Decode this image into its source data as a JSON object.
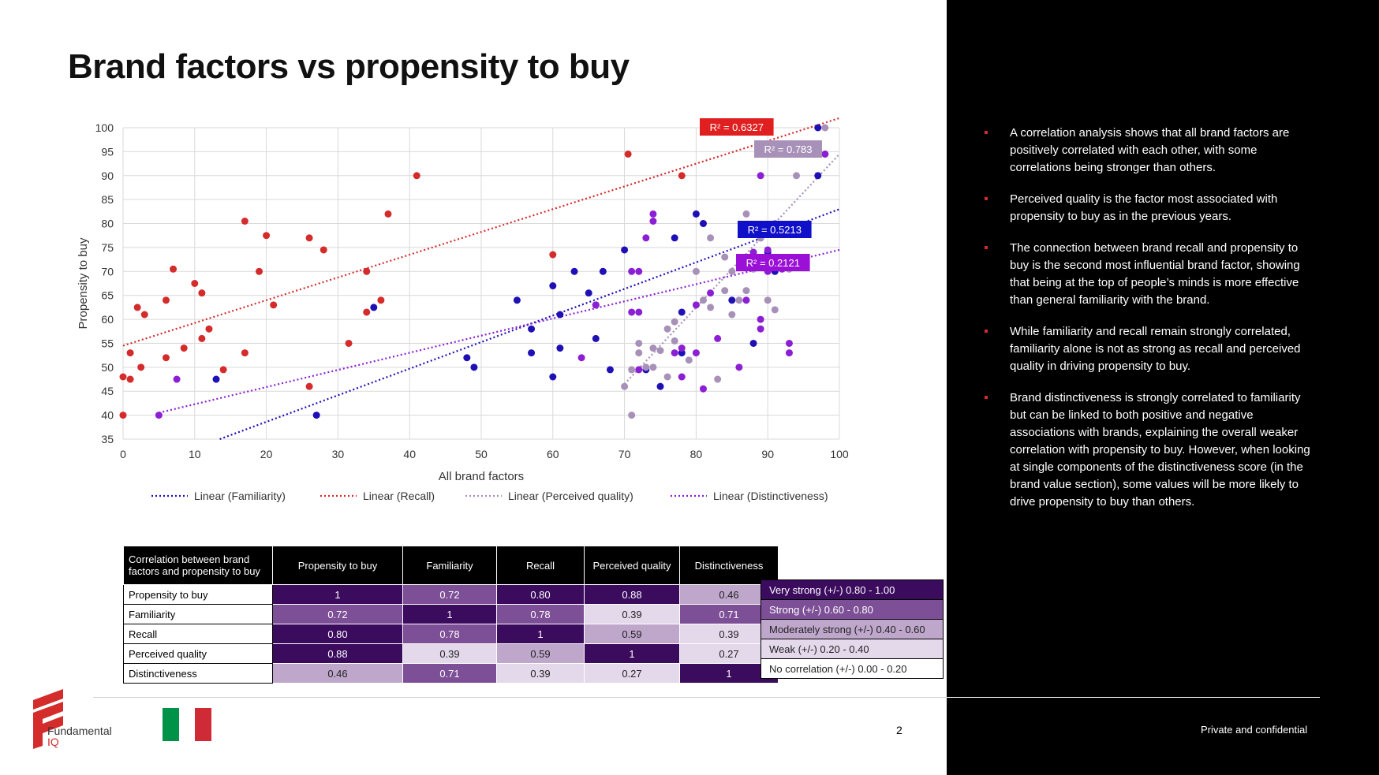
{
  "slide": {
    "title": "Brand factors vs propensity to buy",
    "page_number": "2",
    "confidential": "Private and confidential",
    "logo": {
      "line1": "Fundamental",
      "line2": "IQ"
    },
    "flag_colors": [
      "#009246",
      "#ffffff",
      "#ce2b37"
    ]
  },
  "bullets": [
    "A correlation analysis shows that all brand factors are positively correlated with each other, with some correlations being stronger than others.",
    "Perceived quality is the factor most associated with propensity to buy as in the previous years.",
    "The connection between brand recall and propensity to buy is the second most influential brand factor, showing that being at the top of people’s minds is more effective than general familiarity with the brand.",
    "While familiarity and recall remain strongly correlated, familiarity alone is not as strong as recall and perceived quality in driving propensity to buy.",
    "Brand distinctiveness is strongly correlated to familiarity but can be linked to both positive and negative associations with brands, explaining the overall weaker correlation with propensity to buy. However, when looking at single components of the distinctiveness score (in the brand value section), some values will be more likely to drive propensity to buy than others."
  ],
  "chart_data": {
    "type": "scatter",
    "xlabel": "All brand factors",
    "ylabel": "Propensity to buy",
    "xlim": [
      0,
      100
    ],
    "ylim": [
      35,
      100
    ],
    "xticks": [
      0,
      10,
      20,
      30,
      40,
      50,
      60,
      70,
      80,
      90,
      100
    ],
    "yticks": [
      35,
      40,
      45,
      50,
      55,
      60,
      65,
      70,
      75,
      80,
      85,
      90,
      95,
      100
    ],
    "grid": true,
    "legend_position": "bottom",
    "series": [
      {
        "name": "Familiarity",
        "color": "#1f10b5",
        "points": [
          [
            13,
            47.5
          ],
          [
            27,
            40
          ],
          [
            35,
            62.5
          ],
          [
            48,
            52
          ],
          [
            49,
            50
          ],
          [
            55,
            64
          ],
          [
            57,
            58
          ],
          [
            57,
            53
          ],
          [
            60,
            67
          ],
          [
            60,
            48
          ],
          [
            61,
            54
          ],
          [
            61,
            61
          ],
          [
            63,
            70
          ],
          [
            65,
            65.5
          ],
          [
            66,
            56
          ],
          [
            66,
            63
          ],
          [
            67,
            70
          ],
          [
            68,
            49.5
          ],
          [
            70,
            74.5
          ],
          [
            73,
            49.5
          ],
          [
            75,
            46
          ],
          [
            77,
            77
          ],
          [
            78,
            61.5
          ],
          [
            78,
            53
          ],
          [
            80,
            82
          ],
          [
            81,
            80
          ],
          [
            85,
            64
          ],
          [
            88,
            55
          ],
          [
            89,
            77
          ],
          [
            90,
            74
          ],
          [
            91,
            70
          ],
          [
            97,
            100
          ],
          [
            97,
            90
          ]
        ],
        "trend": [
          [
            13.5,
            35
          ],
          [
            100,
            83
          ]
        ],
        "r2_label": "R² = 0.5213",
        "r2_color": "#1010c8"
      },
      {
        "name": "Recall",
        "color": "#d42b2b",
        "points": [
          [
            0,
            48
          ],
          [
            0,
            40
          ],
          [
            1,
            53
          ],
          [
            1,
            47.5
          ],
          [
            2,
            62.5
          ],
          [
            2.5,
            50
          ],
          [
            3,
            61
          ],
          [
            6,
            64
          ],
          [
            6,
            52
          ],
          [
            7,
            70.5
          ],
          [
            8.5,
            54
          ],
          [
            10,
            67.5
          ],
          [
            11,
            65.5
          ],
          [
            11,
            56
          ],
          [
            12,
            58
          ],
          [
            14,
            49.5
          ],
          [
            17,
            80.5
          ],
          [
            17,
            53
          ],
          [
            19,
            70
          ],
          [
            20,
            77.5
          ],
          [
            21,
            63
          ],
          [
            26,
            77
          ],
          [
            26,
            46
          ],
          [
            28,
            74.5
          ],
          [
            31.5,
            55
          ],
          [
            34,
            61.5
          ],
          [
            34,
            70
          ],
          [
            36,
            64
          ],
          [
            37,
            82
          ],
          [
            41,
            90
          ],
          [
            60,
            73.5
          ],
          [
            70.5,
            94.5
          ],
          [
            78,
            90
          ],
          [
            82,
            100
          ],
          [
            90,
            94.5
          ]
        ],
        "trend": [
          [
            0,
            54.5
          ],
          [
            100,
            102
          ]
        ],
        "r2_label": "R² = 0.6327",
        "r2_color": "#e02020"
      },
      {
        "name": "Perceived quality",
        "color": "#a891b8",
        "points": [
          [
            70,
            46
          ],
          [
            71,
            40
          ],
          [
            71,
            49.5
          ],
          [
            72,
            55
          ],
          [
            72,
            53
          ],
          [
            73,
            50
          ],
          [
            74,
            54
          ],
          [
            74,
            50
          ],
          [
            75,
            53.5
          ],
          [
            76,
            48
          ],
          [
            76,
            58
          ],
          [
            77,
            55.5
          ],
          [
            77,
            59.5
          ],
          [
            78,
            48
          ],
          [
            79,
            51.5
          ],
          [
            80,
            63
          ],
          [
            80,
            70
          ],
          [
            81,
            64
          ],
          [
            82,
            77
          ],
          [
            82,
            62.5
          ],
          [
            83,
            47.5
          ],
          [
            84,
            66
          ],
          [
            84,
            73
          ],
          [
            85,
            61
          ],
          [
            85,
            70
          ],
          [
            86,
            64
          ],
          [
            87,
            82
          ],
          [
            87,
            66
          ],
          [
            88,
            70.5
          ],
          [
            88,
            74
          ],
          [
            89,
            77
          ],
          [
            90,
            64
          ],
          [
            91,
            80
          ],
          [
            91,
            62
          ],
          [
            93,
            70.5
          ],
          [
            94,
            90
          ],
          [
            96,
            94.5
          ],
          [
            98,
            100
          ],
          [
            98,
            94.5
          ]
        ],
        "trend": [
          [
            70,
            46.5
          ],
          [
            100,
            94.5
          ]
        ],
        "r2_label": "R² = 0.783",
        "r2_color": "#a891b8"
      },
      {
        "name": "Distinctiveness",
        "color": "#8c1fd4",
        "points": [
          [
            5,
            40
          ],
          [
            7.5,
            47.5
          ],
          [
            64,
            52
          ],
          [
            66,
            63
          ],
          [
            71,
            61.5
          ],
          [
            71,
            70
          ],
          [
            72,
            70
          ],
          [
            72,
            61.5
          ],
          [
            72,
            49.5
          ],
          [
            73,
            77
          ],
          [
            74,
            82
          ],
          [
            74,
            80.5
          ],
          [
            77,
            53
          ],
          [
            78,
            54
          ],
          [
            78,
            48
          ],
          [
            80,
            63
          ],
          [
            80,
            53
          ],
          [
            81,
            45.5
          ],
          [
            82,
            65.5
          ],
          [
            83,
            56
          ],
          [
            86,
            50
          ],
          [
            87,
            64
          ],
          [
            88,
            74
          ],
          [
            89,
            60
          ],
          [
            89,
            58
          ],
          [
            89,
            90
          ],
          [
            90,
            70
          ],
          [
            90,
            74.5
          ],
          [
            92,
            70.5
          ],
          [
            93,
            53
          ],
          [
            93,
            55
          ],
          [
            94,
            94.5
          ],
          [
            98,
            94.5
          ],
          [
            82,
            100
          ]
        ],
        "trend": [
          [
            5,
            40.5
          ],
          [
            100,
            74.5
          ]
        ],
        "r2_label": "R² = 0.2121",
        "r2_color": "#9a10d6"
      }
    ],
    "legend": [
      "Linear (Familiarity)",
      "Linear (Recall)",
      "Linear (Perceived quality)",
      "Linear (Distinctiveness)"
    ]
  },
  "correlation_table": {
    "corner": "Correlation between brand factors and propensity to buy",
    "columns": [
      "Propensity to buy",
      "Familiarity",
      "Recall",
      "Perceived quality",
      "Distinctiveness"
    ],
    "rows": [
      {
        "label": "Propensity to buy",
        "values": [
          "1",
          "0.72",
          "0.80",
          "0.88",
          "0.46"
        ]
      },
      {
        "label": "Familiarity",
        "values": [
          "0.72",
          "1",
          "0.78",
          "0.39",
          "0.71"
        ]
      },
      {
        "label": "Recall",
        "values": [
          "0.80",
          "0.78",
          "1",
          "0.59",
          "0.39"
        ]
      },
      {
        "label": "Perceived quality",
        "values": [
          "0.88",
          "0.39",
          "0.59",
          "1",
          "0.27"
        ]
      },
      {
        "label": "Distinctiveness",
        "values": [
          "0.46",
          "0.71",
          "0.39",
          "0.27",
          "1"
        ]
      }
    ]
  },
  "strength_legend": [
    {
      "label": "Very strong (+/-) 0.80 - 1.00",
      "color": "#3b0b5e",
      "text_color": "#ffffff"
    },
    {
      "label": "Strong (+/-) 0.60 - 0.80",
      "color": "#7d4f96",
      "text_color": "#ffffff"
    },
    {
      "label": "Moderately strong (+/-) 0.40 - 0.60",
      "color": "#bfa7cc",
      "text_color": "#222222"
    },
    {
      "label": "Weak (+/-) 0.20 - 0.40",
      "color": "#e4d8eb",
      "text_color": "#222222"
    },
    {
      "label": "No correlation (+/-) 0.00 - 0.20",
      "color": "#ffffff",
      "text_color": "#222222"
    }
  ]
}
